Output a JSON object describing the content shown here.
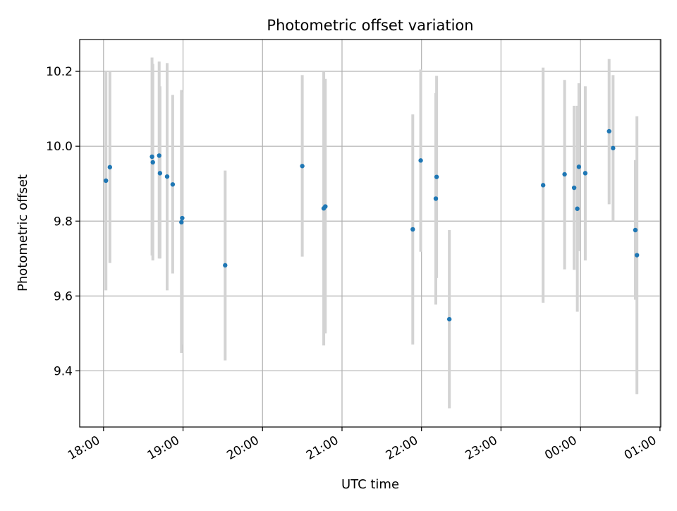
{
  "chart_data": {
    "type": "scatter",
    "title": "Photometric offset variation",
    "xlabel": "UTC time",
    "ylabel": "Photometric offset",
    "xlim": [
      -0.3,
      7.01
    ],
    "ylim": [
      9.25,
      10.285
    ],
    "grid": true,
    "x_ticks": [
      {
        "value": 0,
        "label": "18:00"
      },
      {
        "value": 1,
        "label": "19:00"
      },
      {
        "value": 2,
        "label": "20:00"
      },
      {
        "value": 3,
        "label": "21:00"
      },
      {
        "value": 4,
        "label": "22:00"
      },
      {
        "value": 5,
        "label": "23:00"
      },
      {
        "value": 6,
        "label": "00:00"
      },
      {
        "value": 7,
        "label": "01:00"
      }
    ],
    "y_ticks": [
      {
        "value": 9.4,
        "label": "9.4"
      },
      {
        "value": 9.6,
        "label": "9.6"
      },
      {
        "value": 9.8,
        "label": "9.8"
      },
      {
        "value": 10.0,
        "label": "10.0"
      },
      {
        "value": 10.2,
        "label": "10.2"
      }
    ],
    "x_unit": "hours since 18:00 UTC",
    "colors": {
      "marker": "#1f77b4",
      "errorbar": "#d3d3d3",
      "grid": "#b0b0b0",
      "axis": "#000000"
    },
    "series": [
      {
        "name": "photometric offset",
        "points": [
          {
            "x": 0.03,
            "y": 9.908,
            "ylo": 9.615,
            "yhi": 10.2
          },
          {
            "x": 0.08,
            "y": 9.944,
            "ylo": 9.688,
            "yhi": 10.2
          },
          {
            "x": 0.61,
            "y": 9.972,
            "ylo": 9.708,
            "yhi": 10.237
          },
          {
            "x": 0.62,
            "y": 9.957,
            "ylo": 9.695,
            "yhi": 10.22
          },
          {
            "x": 0.7,
            "y": 9.975,
            "ylo": 9.7,
            "yhi": 10.226
          },
          {
            "x": 0.71,
            "y": 9.928,
            "ylo": 9.7,
            "yhi": 10.16
          },
          {
            "x": 0.8,
            "y": 9.919,
            "ylo": 9.615,
            "yhi": 10.222
          },
          {
            "x": 0.87,
            "y": 9.898,
            "ylo": 9.66,
            "yhi": 10.137
          },
          {
            "x": 0.98,
            "y": 9.797,
            "ylo": 9.448,
            "yhi": 10.15
          },
          {
            "x": 0.99,
            "y": 9.808,
            "ylo": 9.47,
            "yhi": 10.145
          },
          {
            "x": 1.53,
            "y": 9.682,
            "ylo": 9.428,
            "yhi": 9.935
          },
          {
            "x": 2.5,
            "y": 9.947,
            "ylo": 9.705,
            "yhi": 10.19
          },
          {
            "x": 2.77,
            "y": 9.834,
            "ylo": 9.468,
            "yhi": 10.2
          },
          {
            "x": 2.79,
            "y": 9.839,
            "ylo": 9.5,
            "yhi": 10.18
          },
          {
            "x": 3.89,
            "y": 9.778,
            "ylo": 9.47,
            "yhi": 10.085
          },
          {
            "x": 3.99,
            "y": 9.962,
            "ylo": 9.718,
            "yhi": 10.205
          },
          {
            "x": 4.18,
            "y": 9.86,
            "ylo": 9.577,
            "yhi": 10.142
          },
          {
            "x": 4.19,
            "y": 9.918,
            "ylo": 9.648,
            "yhi": 10.188
          },
          {
            "x": 4.35,
            "y": 9.538,
            "ylo": 9.3,
            "yhi": 9.776
          },
          {
            "x": 5.53,
            "y": 9.896,
            "ylo": 9.582,
            "yhi": 10.21
          },
          {
            "x": 5.8,
            "y": 9.925,
            "ylo": 9.671,
            "yhi": 10.177
          },
          {
            "x": 5.92,
            "y": 9.889,
            "ylo": 9.67,
            "yhi": 10.108
          },
          {
            "x": 5.96,
            "y": 9.833,
            "ylo": 9.558,
            "yhi": 10.108
          },
          {
            "x": 5.98,
            "y": 9.945,
            "ylo": 9.72,
            "yhi": 10.168
          },
          {
            "x": 6.06,
            "y": 9.928,
            "ylo": 9.695,
            "yhi": 10.16
          },
          {
            "x": 6.36,
            "y": 10.04,
            "ylo": 9.845,
            "yhi": 10.233
          },
          {
            "x": 6.41,
            "y": 9.995,
            "ylo": 9.8,
            "yhi": 10.19
          },
          {
            "x": 6.69,
            "y": 9.776,
            "ylo": 9.59,
            "yhi": 9.963
          },
          {
            "x": 6.71,
            "y": 9.709,
            "ylo": 9.338,
            "yhi": 10.08
          }
        ]
      }
    ]
  }
}
